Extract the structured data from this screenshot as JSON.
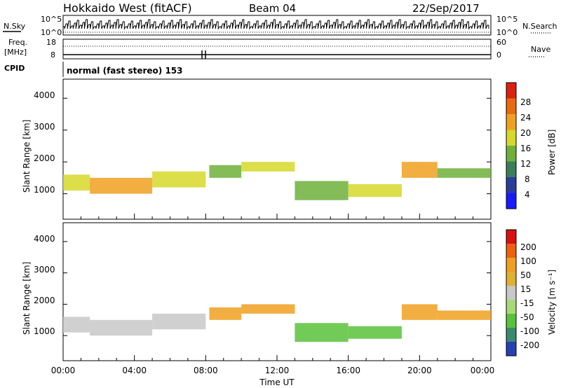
{
  "header": {
    "radar": "Hokkaido West (fitACF)",
    "beam": "Beam 04",
    "date": "22/Sep/2017"
  },
  "noise_panel": {
    "left_label": "N.Sky",
    "left_ticks": [
      "10^5",
      "10^0"
    ],
    "right_ticks": [
      "10^5",
      "10^0"
    ],
    "right_label": "N.Search"
  },
  "freq_panel": {
    "label_line1": "Freq.",
    "label_line2": "[MHz]",
    "left_ticks": [
      "18",
      "8"
    ],
    "right_ticks": [
      "60",
      "0"
    ],
    "right_label": "Nave"
  },
  "cpid": {
    "label": "CPID",
    "value": "normal (fast stereo) 153"
  },
  "power_panel": {
    "ylabel": "Slant Range [km]",
    "yticks": [
      "4000",
      "3000",
      "2000",
      "1000"
    ],
    "colorbar_label": "Power [dB]",
    "colorbar_ticks": [
      "28",
      "24",
      "20",
      "16",
      "12",
      "8",
      "4"
    ]
  },
  "velocity_panel": {
    "ylabel": "Slant Range [km]",
    "yticks": [
      "4000",
      "3000",
      "2000",
      "1000"
    ],
    "colorbar_label": "Velocity [m s⁻¹]",
    "colorbar_ticks": [
      "200",
      "100",
      "50",
      "15",
      "-15",
      "-50",
      "-100",
      "-200"
    ]
  },
  "xaxis": {
    "label": "Time UT",
    "ticks": [
      "00:00",
      "04:00",
      "08:00",
      "12:00",
      "16:00",
      "20:00",
      "00:00"
    ]
  },
  "chart_data": {
    "type": "heatmap",
    "title": "Hokkaido West (fitACF) Beam 04 22/Sep/2017",
    "x_range_hours": [
      0,
      24
    ],
    "y_range_km": [
      200,
      4600
    ],
    "power_colors": [
      "#1a1aff",
      "#2c3d9c",
      "#3a7f5a",
      "#6fb03b",
      "#d6d82a",
      "#f0a020",
      "#ea6a10",
      "#dd2010"
    ],
    "velocity_colors": [
      "#2540b0",
      "#3a8a70",
      "#59c23a",
      "#a8d878",
      "#c8c8c8",
      "#e0b030",
      "#f0a020",
      "#ee6010",
      "#dd1010"
    ],
    "power_bands": [
      {
        "t": [
          0,
          1.5
        ],
        "r": [
          1100,
          1600
        ],
        "db": 20
      },
      {
        "t": [
          1.5,
          5
        ],
        "r": [
          1000,
          1500
        ],
        "db": 24
      },
      {
        "t": [
          5,
          8
        ],
        "r": [
          1200,
          1700
        ],
        "db": 20
      },
      {
        "t": [
          8.2,
          10
        ],
        "r": [
          1500,
          1900
        ],
        "db": 16
      },
      {
        "t": [
          10,
          13
        ],
        "r": [
          1700,
          2000
        ],
        "db": 20
      },
      {
        "t": [
          13,
          16
        ],
        "r": [
          800,
          1400
        ],
        "db": 16
      },
      {
        "t": [
          16,
          19
        ],
        "r": [
          900,
          1300
        ],
        "db": 20
      },
      {
        "t": [
          19,
          21
        ],
        "r": [
          1500,
          2000
        ],
        "db": 24
      },
      {
        "t": [
          21,
          24
        ],
        "r": [
          1500,
          1800
        ],
        "db": 16
      }
    ]
  }
}
